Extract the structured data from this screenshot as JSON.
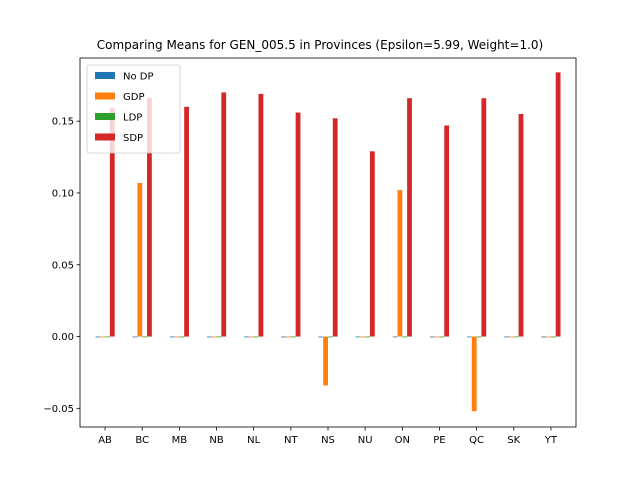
{
  "chart_data": {
    "type": "bar",
    "title": "Comparing Means for GEN_005.5 in Provinces (Epsilon=5.99, Weight=1.0)",
    "xlabel": "",
    "ylabel": "",
    "categories": [
      "AB",
      "BC",
      "MB",
      "NB",
      "NL",
      "NT",
      "NS",
      "NU",
      "ON",
      "PE",
      "QC",
      "SK",
      "YT"
    ],
    "ylim": [
      -0.063,
      0.194
    ],
    "yticks": [
      -0.05,
      0.0,
      0.05,
      0.1,
      0.15
    ],
    "ytick_labels": [
      "−0.05",
      "0.00",
      "0.05",
      "0.10",
      "0.15"
    ],
    "grid": false,
    "legend_position": "upper-left",
    "series": [
      {
        "name": "No DP",
        "color": "#1f77b4",
        "values": [
          0,
          0,
          0,
          0,
          0,
          0,
          0,
          0,
          0,
          0,
          0,
          0,
          0
        ]
      },
      {
        "name": "GDP",
        "color": "#ff7f0e",
        "values": [
          0,
          0.107,
          0,
          0,
          0,
          0,
          -0.034,
          0,
          0.102,
          0,
          -0.052,
          0,
          0
        ]
      },
      {
        "name": "LDP",
        "color": "#2ca02c",
        "values": [
          0,
          0,
          0,
          0,
          0,
          0,
          0,
          0,
          0,
          0,
          0,
          0,
          0
        ]
      },
      {
        "name": "SDP",
        "color": "#d62728",
        "values": [
          0.159,
          0.166,
          0.16,
          0.17,
          0.169,
          0.156,
          0.152,
          0.129,
          0.166,
          0.147,
          0.166,
          0.155,
          0.184
        ]
      }
    ]
  }
}
